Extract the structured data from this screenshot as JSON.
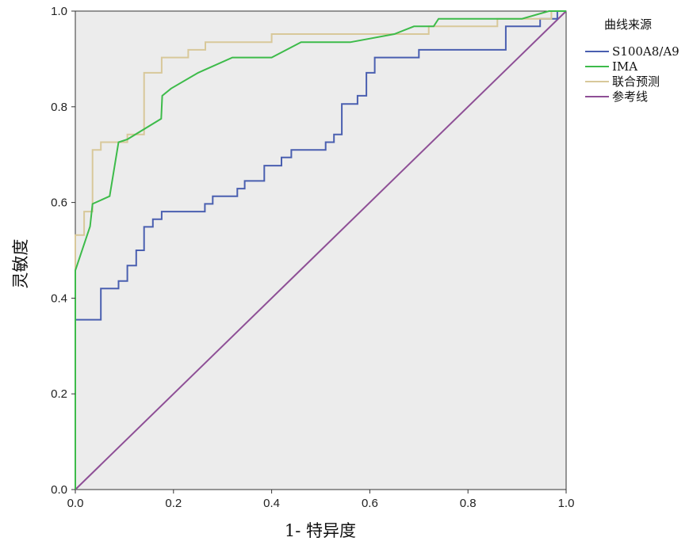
{
  "chart_data": {
    "type": "line",
    "title": "",
    "xlabel": "1- 特异度",
    "ylabel": "灵敏度",
    "xlim": [
      0,
      1
    ],
    "ylim": [
      0,
      1
    ],
    "x_ticks": [
      "0.0",
      "0.2",
      "0.4",
      "0.6",
      "0.8",
      "1.0"
    ],
    "y_ticks": [
      "0.0",
      "0.2",
      "0.4",
      "0.6",
      "0.8",
      "1.0"
    ],
    "grid": false,
    "legend_title": "曲线来源",
    "legend_position": "right",
    "series": [
      {
        "name": "S100A8/A9",
        "color": "#4a5fb0",
        "points": [
          [
            0,
            0
          ],
          [
            0,
            0.355
          ],
          [
            0.052,
            0.355
          ],
          [
            0.052,
            0.42
          ],
          [
            0.088,
            0.42
          ],
          [
            0.088,
            0.436
          ],
          [
            0.106,
            0.436
          ],
          [
            0.106,
            0.468
          ],
          [
            0.124,
            0.468
          ],
          [
            0.124,
            0.5
          ],
          [
            0.14,
            0.5
          ],
          [
            0.14,
            0.549
          ],
          [
            0.158,
            0.549
          ],
          [
            0.158,
            0.565
          ],
          [
            0.176,
            0.565
          ],
          [
            0.176,
            0.581
          ],
          [
            0.264,
            0.581
          ],
          [
            0.264,
            0.597
          ],
          [
            0.28,
            0.597
          ],
          [
            0.28,
            0.613
          ],
          [
            0.33,
            0.613
          ],
          [
            0.33,
            0.629
          ],
          [
            0.345,
            0.629
          ],
          [
            0.345,
            0.645
          ],
          [
            0.385,
            0.645
          ],
          [
            0.385,
            0.677
          ],
          [
            0.42,
            0.677
          ],
          [
            0.42,
            0.694
          ],
          [
            0.44,
            0.694
          ],
          [
            0.44,
            0.71
          ],
          [
            0.51,
            0.71
          ],
          [
            0.51,
            0.726
          ],
          [
            0.527,
            0.726
          ],
          [
            0.527,
            0.742
          ],
          [
            0.543,
            0.742
          ],
          [
            0.543,
            0.806
          ],
          [
            0.575,
            0.806
          ],
          [
            0.575,
            0.823
          ],
          [
            0.593,
            0.823
          ],
          [
            0.593,
            0.871
          ],
          [
            0.61,
            0.871
          ],
          [
            0.61,
            0.903
          ],
          [
            0.7,
            0.903
          ],
          [
            0.7,
            0.919
          ],
          [
            0.877,
            0.919
          ],
          [
            0.877,
            0.968
          ],
          [
            0.947,
            0.968
          ],
          [
            0.947,
            0.984
          ],
          [
            0.982,
            0.984
          ],
          [
            0.982,
            1.0
          ],
          [
            1.0,
            1.0
          ]
        ]
      },
      {
        "name": "IMA",
        "color": "#3dbb4a",
        "points": [
          [
            0,
            0
          ],
          [
            0,
            0.458
          ],
          [
            0.03,
            0.55
          ],
          [
            0.035,
            0.597
          ],
          [
            0.07,
            0.613
          ],
          [
            0.088,
            0.726
          ],
          [
            0.106,
            0.732
          ],
          [
            0.175,
            0.775
          ],
          [
            0.177,
            0.823
          ],
          [
            0.195,
            0.838
          ],
          [
            0.25,
            0.871
          ],
          [
            0.32,
            0.903
          ],
          [
            0.4,
            0.903
          ],
          [
            0.46,
            0.935
          ],
          [
            0.56,
            0.935
          ],
          [
            0.65,
            0.952
          ],
          [
            0.69,
            0.968
          ],
          [
            0.73,
            0.968
          ],
          [
            0.74,
            0.984
          ],
          [
            0.91,
            0.984
          ],
          [
            0.965,
            1.0
          ],
          [
            1.0,
            1.0
          ]
        ]
      },
      {
        "name": "联合预测",
        "color": "#d8c89a",
        "points": [
          [
            0,
            0
          ],
          [
            0,
            0.532
          ],
          [
            0.018,
            0.532
          ],
          [
            0.018,
            0.581
          ],
          [
            0.035,
            0.581
          ],
          [
            0.035,
            0.71
          ],
          [
            0.052,
            0.71
          ],
          [
            0.052,
            0.726
          ],
          [
            0.106,
            0.726
          ],
          [
            0.106,
            0.742
          ],
          [
            0.14,
            0.742
          ],
          [
            0.14,
            0.871
          ],
          [
            0.176,
            0.871
          ],
          [
            0.176,
            0.903
          ],
          [
            0.23,
            0.903
          ],
          [
            0.23,
            0.919
          ],
          [
            0.265,
            0.919
          ],
          [
            0.265,
            0.935
          ],
          [
            0.4,
            0.935
          ],
          [
            0.4,
            0.952
          ],
          [
            0.72,
            0.952
          ],
          [
            0.72,
            0.968
          ],
          [
            0.86,
            0.968
          ],
          [
            0.86,
            0.984
          ],
          [
            0.97,
            0.984
          ],
          [
            0.97,
            1.0
          ],
          [
            1.0,
            1.0
          ]
        ]
      },
      {
        "name": "参考线",
        "color": "#8e4f96",
        "points": [
          [
            0,
            0
          ],
          [
            1,
            1
          ]
        ]
      }
    ]
  }
}
